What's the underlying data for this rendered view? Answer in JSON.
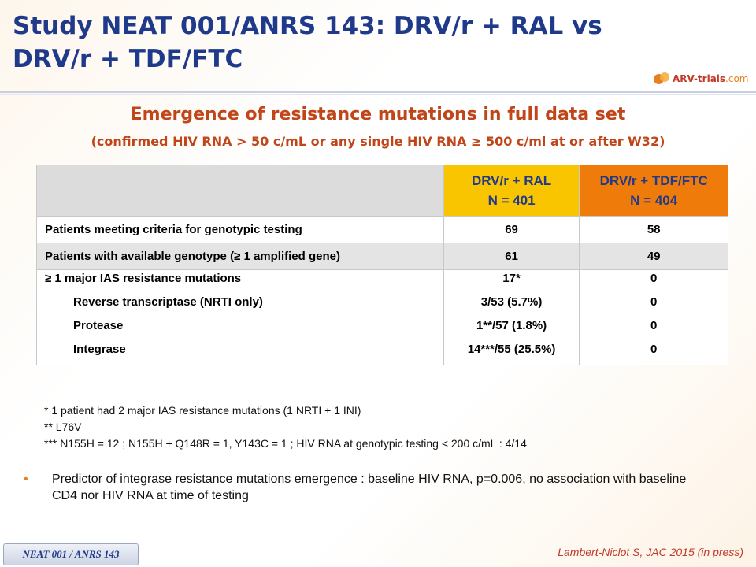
{
  "slide": {
    "title_line1": "Study NEAT 001/ANRS 143: DRV/r + RAL vs",
    "title_line2": "DRV/r + TDF/FTC",
    "logo": {
      "name": "ARV-trials",
      "domain": ".com"
    },
    "subtitle": "Emergence of resistance mutations in full data set",
    "subtitle2": "(confirmed HIV RNA > 50 c/mL or any single HIV RNA ≥ 500 c/ml at or after W32)"
  },
  "table": {
    "columns": [
      {
        "line1": "DRV/r + RAL",
        "line2": "N = 401",
        "color": "#f9c400"
      },
      {
        "line1": "DRV/r + TDF/FTC",
        "line2": "N = 404",
        "color": "#ef7b0a"
      }
    ],
    "row1": {
      "label": "Patients meeting criteria for genotypic testing",
      "ral": "69",
      "tdf": "58"
    },
    "row2": {
      "label": "Patients with available genotype (≥ 1 amplified gene)",
      "ral": "61",
      "tdf": "49"
    },
    "row3": {
      "lines": [
        {
          "label": "≥ 1 major IAS resistance mutations",
          "ral": "17*",
          "tdf": "0"
        },
        {
          "label": "Reverse transcriptase (NRTI only)",
          "ral": "3/53 (5.7%)",
          "tdf": "0"
        },
        {
          "label": "Protease",
          "ral": "1**/57 (1.8%)",
          "tdf": "0"
        },
        {
          "label": "Integrase",
          "ral": "14***/55 (25.5%)",
          "tdf": "0"
        }
      ]
    }
  },
  "footnotes": [
    "* 1 patient had 2 major IAS resistance mutations (1 NRTI + 1 INI)",
    "** L76V",
    "*** N155H = 12 ; N155H + Q148R = 1, Y143C = 1 ; HIV RNA at genotypic testing < 200 c/mL  : 4/14"
  ],
  "bullet": {
    "marker": "•",
    "text": "Predictor of integrase resistance mutations emergence : baseline HIV RNA, p=0.006, no association with baseline CD4 nor HIV RNA  at time of testing"
  },
  "badge": "NEAT 001 / ANRS 143",
  "citation": "Lambert-Niclot S, JAC 2015 (in press)"
}
